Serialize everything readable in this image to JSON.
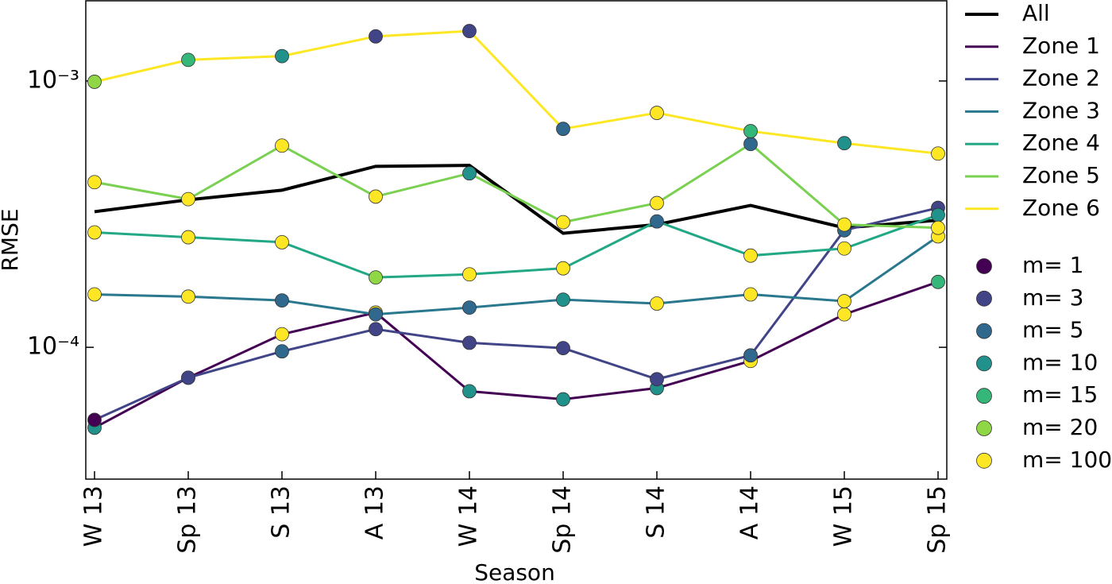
{
  "chart_data": {
    "type": "line",
    "x_label": "Season",
    "y_label": "RMSE",
    "log_y": true,
    "categories": [
      "W 13",
      "Sp 13",
      "S 13",
      "A 13",
      "W 14",
      "Sp 14",
      "S 14",
      "A 14",
      "W 15",
      "Sp 15"
    ],
    "ylim": [
      3.2e-05,
      0.002
    ],
    "yticks": [
      {
        "value": 0.0001,
        "label": "10⁻⁴"
      },
      {
        "value": 0.001,
        "label": "10⁻³"
      }
    ],
    "series": [
      {
        "name": "All",
        "color": "#000000",
        "width": 4,
        "values": [
          0.000323,
          0.000358,
          0.000389,
          0.000478,
          0.000482,
          0.000268,
          0.000289,
          0.000341,
          0.000281,
          0.0003
        ]
      },
      {
        "name": "Zone 1",
        "color": "#440154",
        "values": [
          4.99e-05,
          7.69e-05,
          0.000112,
          0.000135,
          6.84e-05,
          6.38e-05,
          7.03e-05,
          8.89e-05,
          0.000133,
          0.000176
        ],
        "marker_colors": [
          "#21918c",
          "#414487",
          "#fde725",
          "#fde725",
          "#21918c",
          "#21918c",
          "#21918c",
          "#fde725",
          "#fde725",
          "#35b779"
        ]
      },
      {
        "name": "Zone 2",
        "color": "#414487",
        "values": [
          5.34e-05,
          7.69e-05,
          9.66e-05,
          0.000117,
          0.000104,
          9.93e-05,
          7.59e-05,
          9.33e-05,
          0.000275,
          0.000334
        ],
        "marker_colors": [
          "#440154",
          "#414487",
          "#31688e",
          "#414487",
          "#414487",
          "#414487",
          "#414487",
          "#31688e",
          "#31688e",
          "#414487"
        ]
      },
      {
        "name": "Zone 3",
        "color": "#2a788e",
        "values": [
          0.000158,
          0.000155,
          0.00015,
          0.000133,
          0.000141,
          0.000151,
          0.000146,
          0.000158,
          0.000149,
          0.000261
        ],
        "marker_colors": [
          "#fde725",
          "#fde725",
          "#31688e",
          "#31688e",
          "#31688e",
          "#21918c",
          "#fde725",
          "#fde725",
          "#fde725",
          "#fde725"
        ]
      },
      {
        "name": "Zone 4",
        "color": "#22a884",
        "values": [
          0.00027,
          0.000259,
          0.000248,
          0.000183,
          0.000188,
          0.000198,
          0.000297,
          0.000221,
          0.000235,
          0.000314
        ],
        "marker_colors": [
          "#fde725",
          "#fde725",
          "#fde725",
          "#8fd744",
          "#fde725",
          "#fde725",
          "#31688e",
          "#fde725",
          "#fde725",
          "#21918c"
        ]
      },
      {
        "name": "Zone 5",
        "color": "#7ad151",
        "values": [
          0.000417,
          0.00036,
          0.000572,
          0.000368,
          0.00045,
          0.000295,
          0.000348,
          0.00058,
          0.000289,
          0.000281
        ],
        "marker_colors": [
          "#fde725",
          "#fde725",
          "#fde725",
          "#fde725",
          "#21918c",
          "#fde725",
          "#fde725",
          "#31688e",
          "#fde725",
          "#fde725"
        ]
      },
      {
        "name": "Zone 6",
        "color": "#fde725",
        "values": [
          0.000993,
          0.0012,
          0.00124,
          0.00147,
          0.00154,
          0.000661,
          0.000759,
          0.000648,
          0.000584,
          0.000534
        ],
        "marker_colors": [
          "#8fd744",
          "#35b779",
          "#21918c",
          "#414487",
          "#414487",
          "#31688e",
          "#fde725",
          "#35b779",
          "#21918c",
          "#fde725"
        ]
      }
    ],
    "marker_legend": [
      {
        "name": "m= 1",
        "color": "#440154"
      },
      {
        "name": "m= 3",
        "color": "#414487"
      },
      {
        "name": "m= 5",
        "color": "#31688e"
      },
      {
        "name": "m= 10",
        "color": "#21918c"
      },
      {
        "name": "m= 15",
        "color": "#35b779"
      },
      {
        "name": "m= 20",
        "color": "#8fd744"
      },
      {
        "name": "m= 100",
        "color": "#fde725"
      }
    ]
  }
}
